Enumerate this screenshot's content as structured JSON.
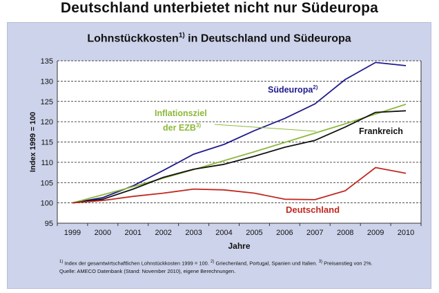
{
  "heading": "Deutschland unterbietet nicht nur Südeuropa",
  "chart_title": {
    "text": "Lohnstückkosten",
    "sup": "1)",
    "rest": " in Deutschland und Südeuropa"
  },
  "footnotes": {
    "n1": "1)",
    "t1": " Index der gesamtwirtschaftlichen Lohnstückkosten 1999 = 100. ",
    "n2": "2)",
    "t2": " Griechenland, Portugal, Spanien und Italien. ",
    "n3": "3)",
    "t3": " Preisanstieg von 2%.",
    "source": "Quelle: AMECO Datenbank (Stand: November 2010), eigene Berechnungen."
  },
  "chart_data": {
    "type": "line",
    "xlabel": "Jahre",
    "ylabel": "Index 1999 = 100",
    "ylim": [
      95,
      135
    ],
    "yticks": [
      95,
      100,
      105,
      110,
      115,
      120,
      125,
      130,
      135
    ],
    "x": [
      "1999",
      "2000",
      "2001",
      "2002",
      "2003",
      "2004",
      "2005",
      "2006",
      "2007",
      "2008",
      "2009",
      "2010"
    ],
    "grid": "horizontal dashed",
    "series": [
      {
        "name": "Südeuropa",
        "sup": "2)",
        "color": "#1f1a8c",
        "values": [
          100,
          101.3,
          104.2,
          108.0,
          112.0,
          114.4,
          117.8,
          120.8,
          124.4,
          130.4,
          134.6,
          133.8
        ]
      },
      {
        "name": "Inflationsziel der EZB",
        "sup": "3)",
        "color": "#8cb83a",
        "values": [
          100,
          102.0,
          104.0,
          106.1,
          108.2,
          110.4,
          112.6,
          114.9,
          117.2,
          119.5,
          121.9,
          124.3
        ]
      },
      {
        "name": "Frankreich",
        "color": "#111111",
        "values": [
          100,
          100.9,
          103.4,
          106.3,
          108.3,
          109.5,
          111.5,
          113.7,
          115.4,
          118.7,
          122.3,
          122.7
        ]
      },
      {
        "name": "Deutschland",
        "color": "#c0281f",
        "values": [
          100,
          100.6,
          101.6,
          102.4,
          103.4,
          103.2,
          102.4,
          100.9,
          100.8,
          103.0,
          108.7,
          107.3
        ]
      }
    ],
    "annotations": {
      "suedeuropa": "Südeuropa",
      "suedeuropa_sup": "2)",
      "ezb_line1": "Inflationsziel",
      "ezb_line2": "der EZB",
      "ezb_sup": "3)",
      "frankreich": "Frankreich",
      "deutschland": "Deutschland"
    }
  }
}
